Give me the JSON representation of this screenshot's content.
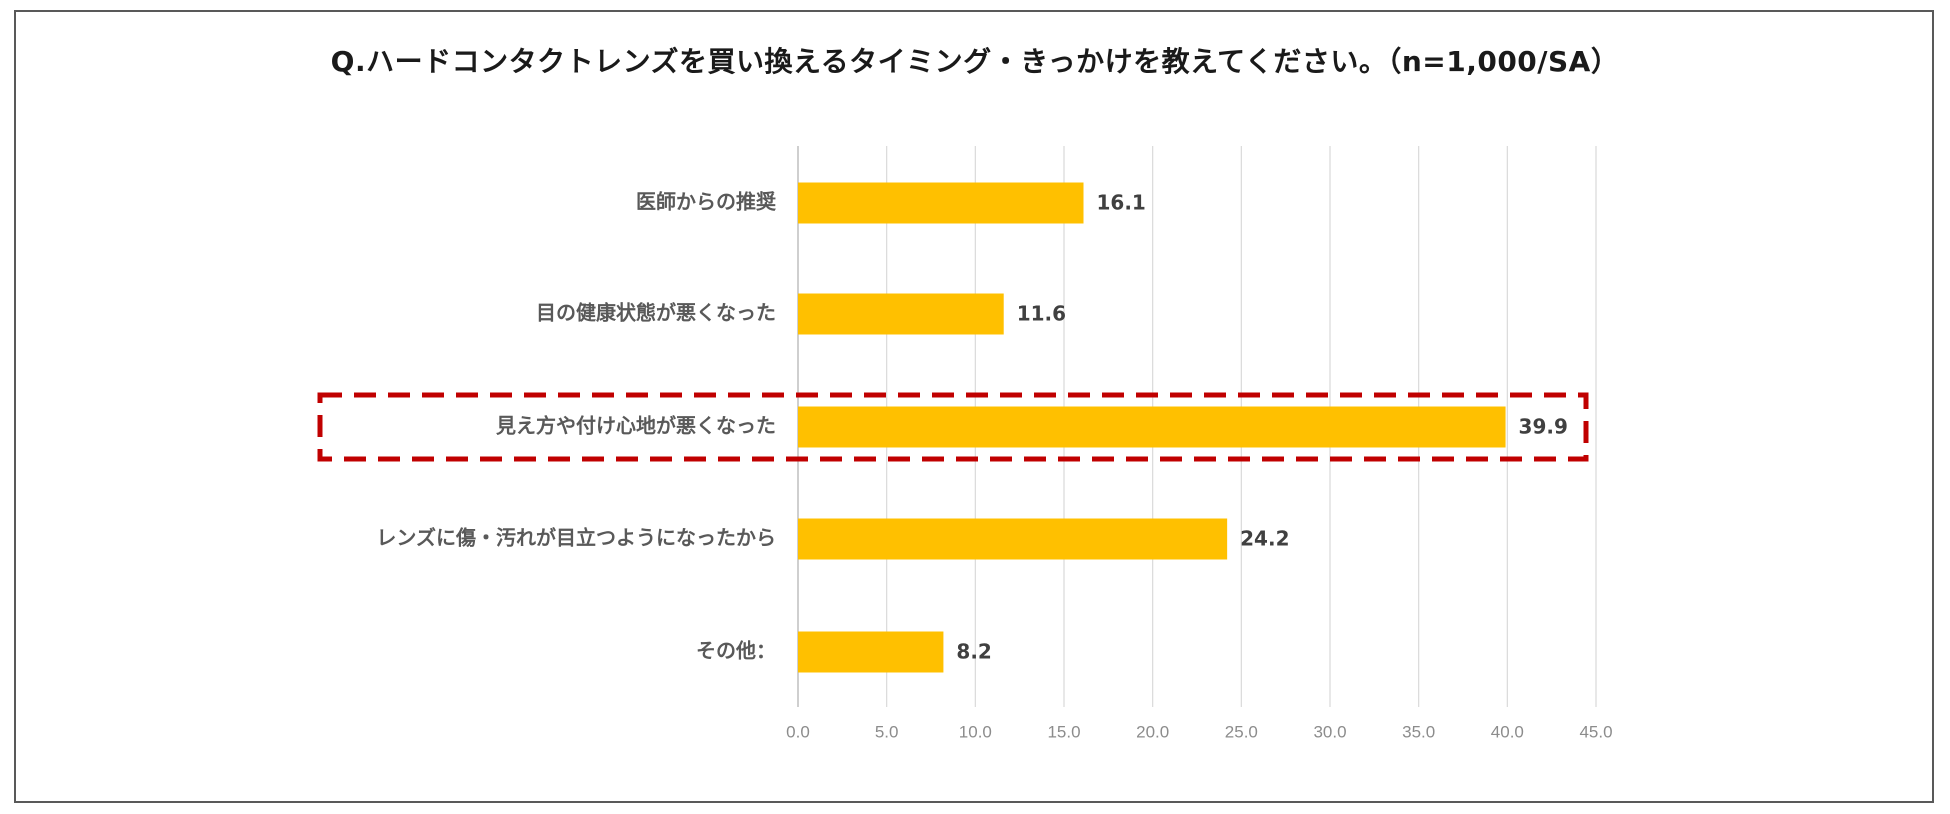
{
  "chart_data": {
    "type": "bar",
    "orientation": "horizontal",
    "title": "Q.ハードコンタクトレンズを買い換えるタイミング・きっかけを教えてください。（n=1,000/SA）",
    "categories": [
      "医師からの推奨",
      "目の健康状態が悪くなった",
      "見え方や付け心地が悪くなった",
      "レンズに傷・汚れが目立つようになったから",
      "その他："
    ],
    "values": [
      16.1,
      11.6,
      39.9,
      24.2,
      8.2
    ],
    "value_labels": [
      "16.1",
      "11.6",
      "39.9",
      "24.2",
      "8.2"
    ],
    "xlim": [
      0,
      45
    ],
    "ticks": [
      "0.0",
      "5.0",
      "10.0",
      "15.0",
      "20.0",
      "25.0",
      "30.0",
      "35.0",
      "40.0",
      "45.0"
    ],
    "xlabel": "",
    "ylabel": "",
    "grid": "vertical",
    "legend": "none",
    "highlight_category_index": 2,
    "colors": {
      "bar": "#FFC000",
      "highlight_box": "#C00000",
      "gridline": "#D9D9D9",
      "frame": "#595959"
    }
  }
}
